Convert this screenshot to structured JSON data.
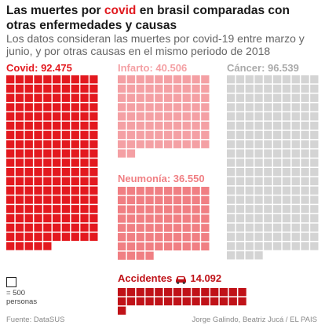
{
  "header": {
    "title_pre": "Las muertes por ",
    "title_highlight": "covid",
    "title_post": " en brasil comparadas con otras enfermedades y causas",
    "subtitle": "Los datos consideran las muertes por covid-19 entre marzo y junio, y por otras causas en el mismo periodo de 2018"
  },
  "labels": {
    "covid_name": "Covid:",
    "covid_value": "92.475",
    "infarto_name": "Infarto:",
    "infarto_value": "40.506",
    "cancer_name": "Cáncer:",
    "cancer_value": "96.539",
    "neumonia_name": "Neumonía:",
    "neumonia_value": "36.550",
    "accidentes_name": "Accidentes",
    "accidentes_value": "14.092",
    "car_icon": "car-icon"
  },
  "legend": {
    "line1": "= 500",
    "line2": "personas"
  },
  "footer": {
    "source": "Fuente: DataSUS",
    "credit": "Jorge Galindo, Beatriz Jucá / EL PAIS"
  },
  "colors": {
    "covid": "#e3191f",
    "infarto": "#f4a0a4",
    "neumonia": "#f07f83",
    "cancer": "#d4d4d4",
    "accidentes": "#c01218",
    "highlight": "#e0191f"
  },
  "chart_data": {
    "type": "waffle",
    "unit": 500,
    "unit_label": "personas",
    "series": [
      {
        "name": "Covid",
        "value": 92475
      },
      {
        "name": "Infarto",
        "value": 40506
      },
      {
        "name": "Cáncer",
        "value": 96539
      },
      {
        "name": "Neumonía",
        "value": 36550
      },
      {
        "name": "Accidentes",
        "value": 14092
      }
    ]
  }
}
